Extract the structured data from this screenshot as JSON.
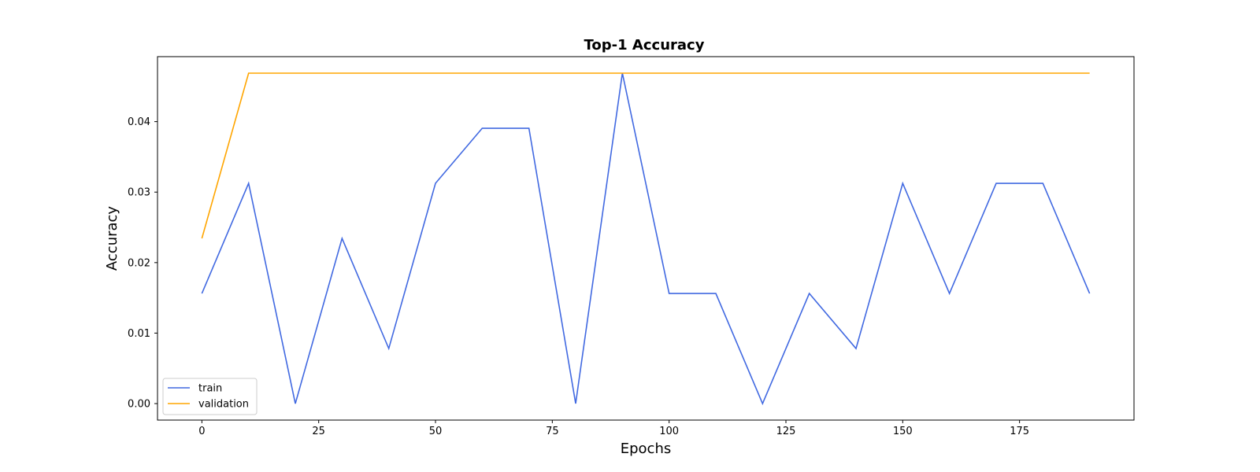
{
  "chart_data": {
    "type": "line",
    "title": "Top-1 Accuracy",
    "xlabel": "Epochs",
    "ylabel": "Accuracy",
    "xlim": [
      -9.5,
      199.5
    ],
    "ylim": [
      -0.00234,
      0.04922
    ],
    "xticks": [
      0,
      25,
      50,
      75,
      100,
      125,
      150,
      175
    ],
    "xtick_labels": [
      "0",
      "25",
      "50",
      "75",
      "100",
      "125",
      "150",
      "175"
    ],
    "yticks": [
      0.0,
      0.01,
      0.02,
      0.03,
      0.04
    ],
    "ytick_labels": [
      "0.00",
      "0.01",
      "0.02",
      "0.03",
      "0.04"
    ],
    "grid": false,
    "legend_position": "lower-left",
    "x": [
      0,
      10,
      20,
      30,
      40,
      50,
      60,
      70,
      80,
      90,
      100,
      110,
      120,
      130,
      140,
      150,
      160,
      170,
      180,
      190
    ],
    "series": [
      {
        "name": "train",
        "color": "#4169e1",
        "values": [
          0.015625,
          0.03125,
          0.0,
          0.0234375,
          0.0078125,
          0.03125,
          0.0390625,
          0.0390625,
          0.0,
          0.046875,
          0.015625,
          0.015625,
          0.0,
          0.015625,
          0.0078125,
          0.03125,
          0.015625,
          0.03125,
          0.03125,
          0.015625
        ]
      },
      {
        "name": "validation",
        "color": "#ffa500",
        "values": [
          0.0234375,
          0.046875,
          0.046875,
          0.046875,
          0.046875,
          0.046875,
          0.046875,
          0.046875,
          0.046875,
          0.046875,
          0.046875,
          0.046875,
          0.046875,
          0.046875,
          0.046875,
          0.046875,
          0.046875,
          0.046875,
          0.046875,
          0.046875
        ]
      }
    ]
  }
}
